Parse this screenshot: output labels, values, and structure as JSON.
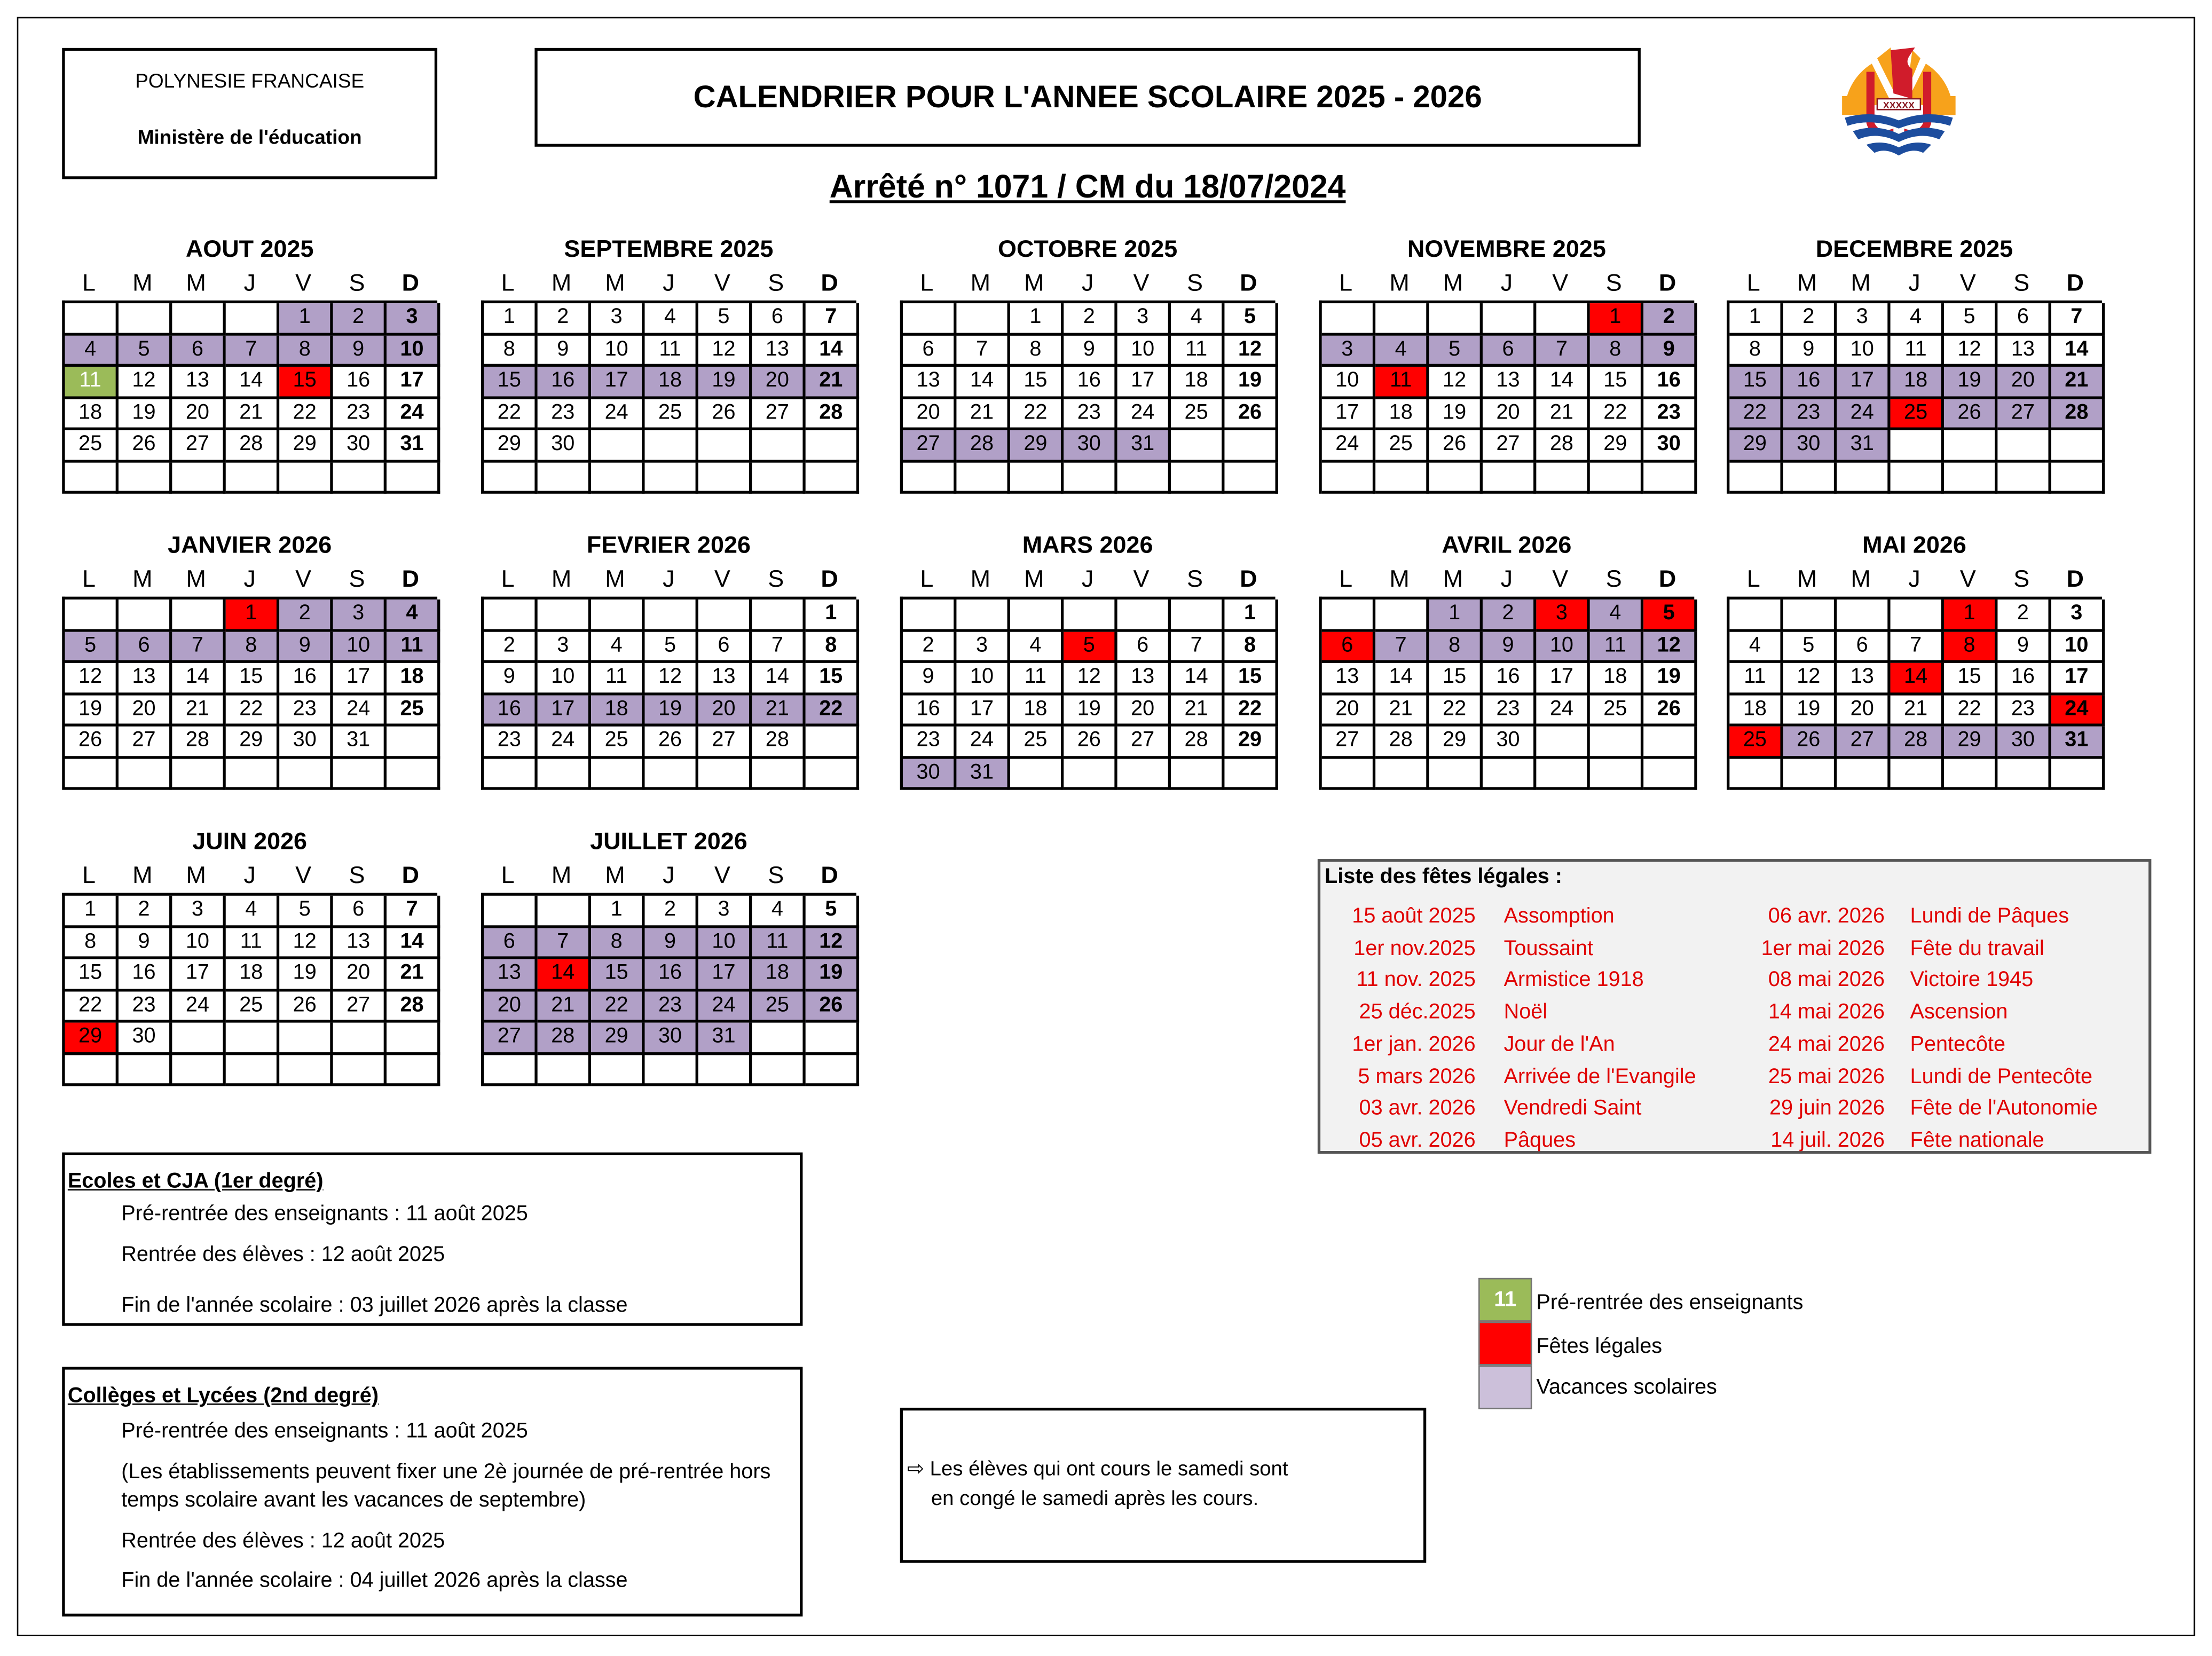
{
  "header": {
    "territory": "POLYNESIE FRANCAISE",
    "ministry": "Ministère de l'éducation",
    "title": "CALENDRIER POUR L'ANNEE SCOLAIRE 2025 - 2026",
    "decree": "Arrêté n° 1071 / CM du 18/07/2024",
    "logo_text": "XXXXX"
  },
  "weekdays": [
    "L",
    "M",
    "M",
    "J",
    "V",
    "S",
    "D"
  ],
  "colors": {
    "vacances": "#b1a0c7",
    "fete": "#ff0000",
    "pre_rentree": "#9bbb59"
  },
  "months": [
    {
      "name": "AOUT  2025",
      "start": 4,
      "days": 31,
      "vac": [
        1,
        2,
        3,
        4,
        5,
        6,
        7,
        8,
        9,
        10
      ],
      "fete": [
        15
      ],
      "pre": [
        11
      ]
    },
    {
      "name": "SEPTEMBRE  2025",
      "start": 0,
      "days": 30,
      "vac": [
        15,
        16,
        17,
        18,
        19,
        20,
        21
      ],
      "fete": [],
      "pre": []
    },
    {
      "name": "OCTOBRE  2025",
      "start": 2,
      "days": 31,
      "vac": [
        27,
        28,
        29,
        30,
        31
      ],
      "fete": [],
      "pre": []
    },
    {
      "name": "NOVEMBRE  2025",
      "start": 5,
      "days": 30,
      "vac": [
        2,
        3,
        4,
        5,
        6,
        7,
        8,
        9
      ],
      "fete": [
        1,
        11
      ],
      "pre": []
    },
    {
      "name": "DECEMBRE  2025",
      "start": 0,
      "days": 31,
      "vac": [
        15,
        16,
        17,
        18,
        19,
        20,
        21,
        22,
        23,
        24,
        26,
        27,
        28,
        29,
        30,
        31
      ],
      "fete": [
        25
      ],
      "pre": []
    },
    {
      "name": "JANVIER  2026",
      "start": 3,
      "days": 31,
      "vac": [
        2,
        3,
        4,
        5,
        6,
        7,
        8,
        9,
        10,
        11
      ],
      "fete": [
        1
      ],
      "pre": []
    },
    {
      "name": "FEVRIER  2026",
      "start": 6,
      "days": 28,
      "vac": [
        16,
        17,
        18,
        19,
        20,
        21,
        22
      ],
      "fete": [],
      "pre": []
    },
    {
      "name": "MARS 2026",
      "start": 6,
      "days": 31,
      "vac": [
        30,
        31
      ],
      "fete": [
        5
      ],
      "pre": []
    },
    {
      "name": "AVRIL  2026",
      "start": 2,
      "days": 30,
      "vac": [
        1,
        2,
        4,
        7,
        8,
        9,
        10,
        11,
        12
      ],
      "fete": [
        3,
        5,
        6
      ],
      "pre": []
    },
    {
      "name": "MAI  2026",
      "start": 4,
      "days": 31,
      "vac": [
        26,
        27,
        28,
        29,
        30,
        31
      ],
      "fete": [
        1,
        8,
        14,
        24,
        25
      ],
      "pre": []
    },
    {
      "name": "JUIN  2026",
      "start": 0,
      "days": 30,
      "vac": [],
      "fete": [
        29
      ],
      "pre": []
    },
    {
      "name": "JUILLET  2026",
      "start": 2,
      "days": 31,
      "vac": [
        6,
        7,
        8,
        9,
        10,
        11,
        12,
        13,
        15,
        16,
        17,
        18,
        19,
        20,
        21,
        22,
        23,
        24,
        25,
        26,
        27,
        28,
        29,
        30,
        31
      ],
      "fete": [
        14
      ],
      "pre": []
    }
  ],
  "fetes": {
    "title": "Liste des fêtes légales :",
    "left": [
      {
        "date": "15 août 2025",
        "name": "Assomption"
      },
      {
        "date": "1er nov.2025",
        "name": "Toussaint"
      },
      {
        "date": "11 nov. 2025",
        "name": "Armistice 1918"
      },
      {
        "date": "25 déc.2025",
        "name": "Noël"
      },
      {
        "date": "1er jan. 2026",
        "name": "Jour de l'An"
      },
      {
        "date": "5 mars 2026",
        "name": "Arrivée de l'Evangile"
      },
      {
        "date": "03 avr. 2026",
        "name": "Vendredi Saint"
      },
      {
        "date": "05 avr. 2026",
        "name": "Pâques"
      }
    ],
    "right": [
      {
        "date": "06 avr. 2026",
        "name": "Lundi de Pâques"
      },
      {
        "date": "1er mai 2026",
        "name": "Fête du travail"
      },
      {
        "date": "08 mai 2026",
        "name": "Victoire 1945"
      },
      {
        "date": "14 mai 2026",
        "name": "Ascension"
      },
      {
        "date": "24 mai 2026",
        "name": "Pentecôte"
      },
      {
        "date": "25 mai 2026",
        "name": "Lundi de Pentecôte"
      },
      {
        "date": "29 juin 2026",
        "name": "Fête de l'Autonomie"
      },
      {
        "date": "14 juil. 2026",
        "name": "Fête nationale"
      }
    ]
  },
  "ecoles": {
    "heading": "Ecoles et CJA (1er degré)",
    "pre": "Pré-rentrée des enseignants : 11 août 2025",
    "rentree": "Rentrée des élèves : 12 août 2025",
    "fin": "Fin de l'année scolaire : 03 juillet 2026  après la classe"
  },
  "colleges": {
    "heading": "Collèges et Lycées (2nd degré)",
    "pre": "Pré-rentrée des enseignants : 11 août 2025",
    "note1": "(Les établissements peuvent fixer une 2è journée de pré-rentrée hors",
    "note2": "temps scolaire avant les vacances de septembre)",
    "rentree": "Rentrée des élèves : 12 août 2025",
    "fin": "Fin de l'année scolaire : 04 juillet 2026  après la classe"
  },
  "note": {
    "line1": "⇨ Les élèves qui ont cours le samedi sont",
    "line2": "en congé le samedi après les cours."
  },
  "legend": {
    "sample_day": "11",
    "pre": "Pré-rentrée des enseignants",
    "fete": "Fêtes légales",
    "vac": "Vacances scolaires"
  }
}
